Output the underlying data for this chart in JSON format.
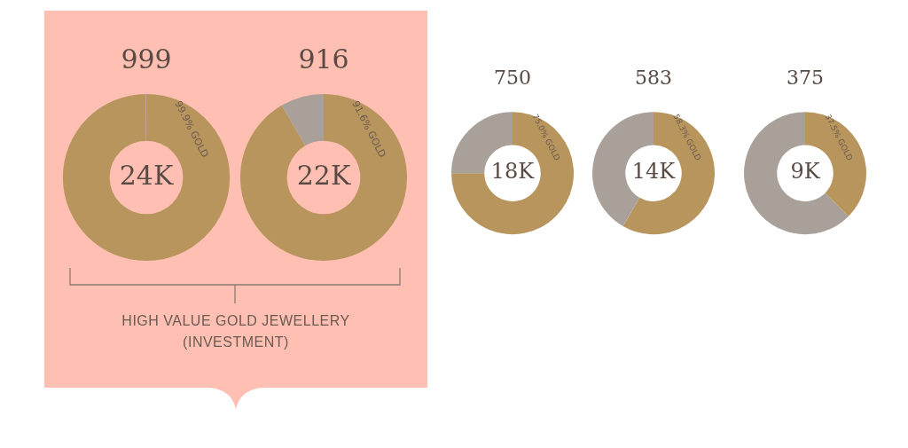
{
  "chart_data": [
    {
      "type": "donut",
      "title": "999",
      "categories": [
        "99.9% GOLD",
        null
      ],
      "values": [
        99.9,
        0.1
      ],
      "colors": [
        "#b8955c",
        "#a9a09a"
      ],
      "annotations": [
        "24K"
      ]
    },
    {
      "type": "donut",
      "title": "916",
      "categories": [
        "91.6% GOLD",
        null
      ],
      "values": [
        91.6,
        8.4
      ],
      "colors": [
        "#b8955c",
        "#a9a09a"
      ],
      "annotations": [
        "22K"
      ]
    },
    {
      "type": "donut",
      "title": "750",
      "categories": [
        "75.0% GOLD",
        null
      ],
      "values": [
        75.0,
        25.0
      ],
      "colors": [
        "#b8955c",
        "#a9a09a"
      ],
      "annotations": [
        "18K"
      ]
    },
    {
      "type": "donut",
      "title": "583",
      "categories": [
        "58.3% GOLD",
        null
      ],
      "values": [
        58.3,
        41.7
      ],
      "colors": [
        "#b8955c",
        "#a9a09a"
      ],
      "annotations": [
        "14K"
      ]
    },
    {
      "type": "donut",
      "title": "375",
      "categories": [
        "37.5% GOLD",
        null
      ],
      "values": [
        37.5,
        62.5
      ],
      "colors": [
        "#b8955c",
        "#a9a09a"
      ],
      "annotations": [
        "9K"
      ]
    },
    {
      "type": "other",
      "annotations": [
        "HIGH VALUE GOLD JEWELLERY (INVESTMENT)"
      ]
    }
  ]
}
